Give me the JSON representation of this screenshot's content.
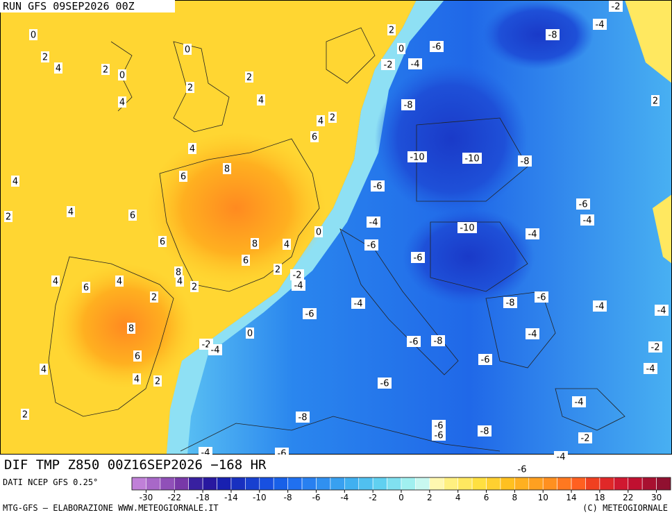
{
  "header": {
    "run": "RUN GFS 09SEP2026 00Z",
    "title": "DIF TMP Z850 00Z16SEP2026 −168 HR"
  },
  "footer": {
    "source": "DATI NCEP GFS 0.25°",
    "left": "MTG-GFS – ELABORAZIONE WWW.METEOGIORNALE.IT",
    "right": "(C) METEOGIORNALE"
  },
  "contour_labels": [
    0,
    2,
    4,
    2,
    0,
    4,
    0,
    2,
    2,
    4,
    4,
    2,
    6,
    4,
    8,
    6,
    4,
    2,
    4,
    6,
    6,
    8,
    4,
    6,
    0,
    2,
    8,
    4,
    2,
    -2,
    -4,
    4,
    6,
    4,
    2,
    8,
    6,
    4,
    4,
    2,
    2,
    -2,
    -4,
    0,
    -6,
    -4,
    2,
    0,
    -2,
    -4,
    -6,
    -8,
    -4,
    -2,
    2,
    -8,
    -10,
    -10,
    -8,
    -6,
    -6,
    -4,
    -4,
    -6,
    -10,
    -4,
    -6,
    -8,
    -6,
    -4,
    -4,
    -4,
    -6,
    -8,
    -6,
    -2,
    -4,
    -6,
    -4,
    -8,
    -6,
    -6,
    -8,
    -2,
    -4,
    -6,
    -4,
    -6
  ],
  "colorbar": {
    "colors": [
      "#c080d8",
      "#a868c8",
      "#9050b8",
      "#7838a8",
      "#3820a0",
      "#2818a0",
      "#1820b0",
      "#1830c0",
      "#1840d0",
      "#1850e0",
      "#1860e8",
      "#2070f0",
      "#2880f0",
      "#3090f0",
      "#38a0f0",
      "#40b0f0",
      "#50c0f0",
      "#60d0f0",
      "#80e0f0",
      "#a0f0f0",
      "#c8f8f0",
      "#fff8b0",
      "#fff080",
      "#ffe860",
      "#ffe040",
      "#ffd030",
      "#ffc020",
      "#ffb020",
      "#ffa020",
      "#ff9020",
      "#ff7820",
      "#ff6020",
      "#f04020",
      "#e02828",
      "#d01830",
      "#c01030",
      "#a81030",
      "#901030"
    ],
    "ticks": [
      -30,
      -22,
      -18,
      -14,
      -10,
      -8,
      -6,
      -4,
      -2,
      0,
      2,
      4,
      6,
      8,
      10,
      14,
      18,
      22,
      30
    ]
  }
}
